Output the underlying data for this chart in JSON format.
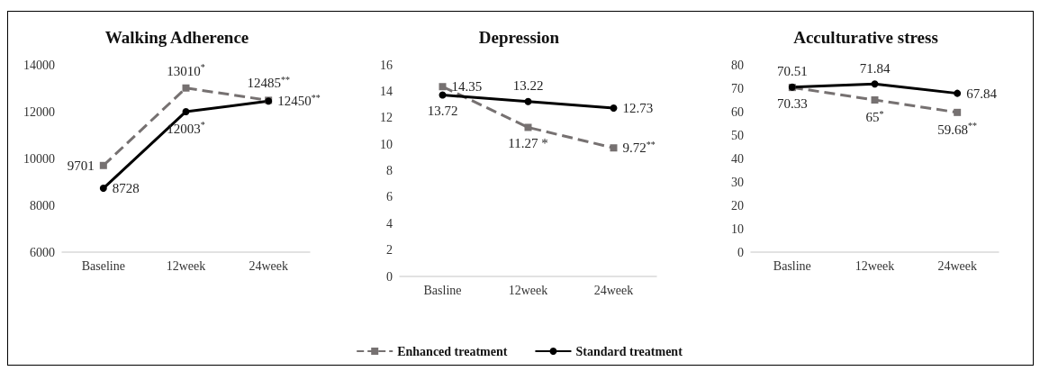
{
  "chart_data": [
    {
      "type": "line",
      "title": "Walking Adherence",
      "categories": [
        "Baseline",
        "12week",
        "24week"
      ],
      "ylim": [
        6000,
        14000
      ],
      "yticks": [
        6000,
        8000,
        10000,
        12000,
        14000
      ],
      "grid": false,
      "series": [
        {
          "color": "#767171",
          "marker": "square",
          "line_style": "dashed",
          "values": [
            9701,
            13010,
            12485
          ],
          "value_labels": [
            "9701",
            "13010$^{*}$",
            "12485$^{**}$"
          ]
        },
        {
          "color": "#000000",
          "marker": "circle",
          "line_style": "solid",
          "values": [
            8728,
            12003,
            12450
          ],
          "value_labels": [
            "8728",
            "12003$^{*}$",
            "12450$^{**}$"
          ]
        }
      ]
    },
    {
      "type": "line",
      "title": "Depression",
      "categories": [
        "Basline",
        "12week",
        "24week"
      ],
      "ylim": [
        0,
        16
      ],
      "yticks": [
        0,
        2,
        4,
        6,
        8,
        10,
        12,
        14,
        16
      ],
      "grid": false,
      "legend": "bottom",
      "series": [
        {
          "name": "Enhanced treatment",
          "color": "#767171",
          "marker": "square",
          "line_style": "dashed",
          "values": [
            14.35,
            11.27,
            9.72
          ],
          "value_labels": [
            "14.35",
            "11.27 *",
            "9.72$^{**}$"
          ]
        },
        {
          "name": "Standard treatment",
          "color": "#000000",
          "marker": "circle",
          "line_style": "solid",
          "values": [
            13.72,
            13.22,
            12.73
          ],
          "value_labels": [
            "13.72",
            "13.22",
            "12.73"
          ]
        }
      ]
    },
    {
      "type": "line",
      "title": "Acculturative stress",
      "categories": [
        "Basline",
        "12week",
        "24week"
      ],
      "ylim": [
        0,
        80
      ],
      "yticks": [
        0,
        10,
        20,
        30,
        40,
        50,
        60,
        70,
        80
      ],
      "grid": false,
      "series": [
        {
          "color": "#767171",
          "marker": "square",
          "line_style": "dashed",
          "values": [
            70.33,
            65,
            59.68
          ],
          "value_labels": [
            "70.33",
            "65$^{*}$",
            "59.68$^{**}$"
          ]
        },
        {
          "color": "#000000",
          "marker": "circle",
          "line_style": "solid",
          "values": [
            70.51,
            71.84,
            67.84
          ],
          "value_labels": [
            "70.51",
            "71.84",
            "67.84"
          ]
        }
      ]
    }
  ]
}
